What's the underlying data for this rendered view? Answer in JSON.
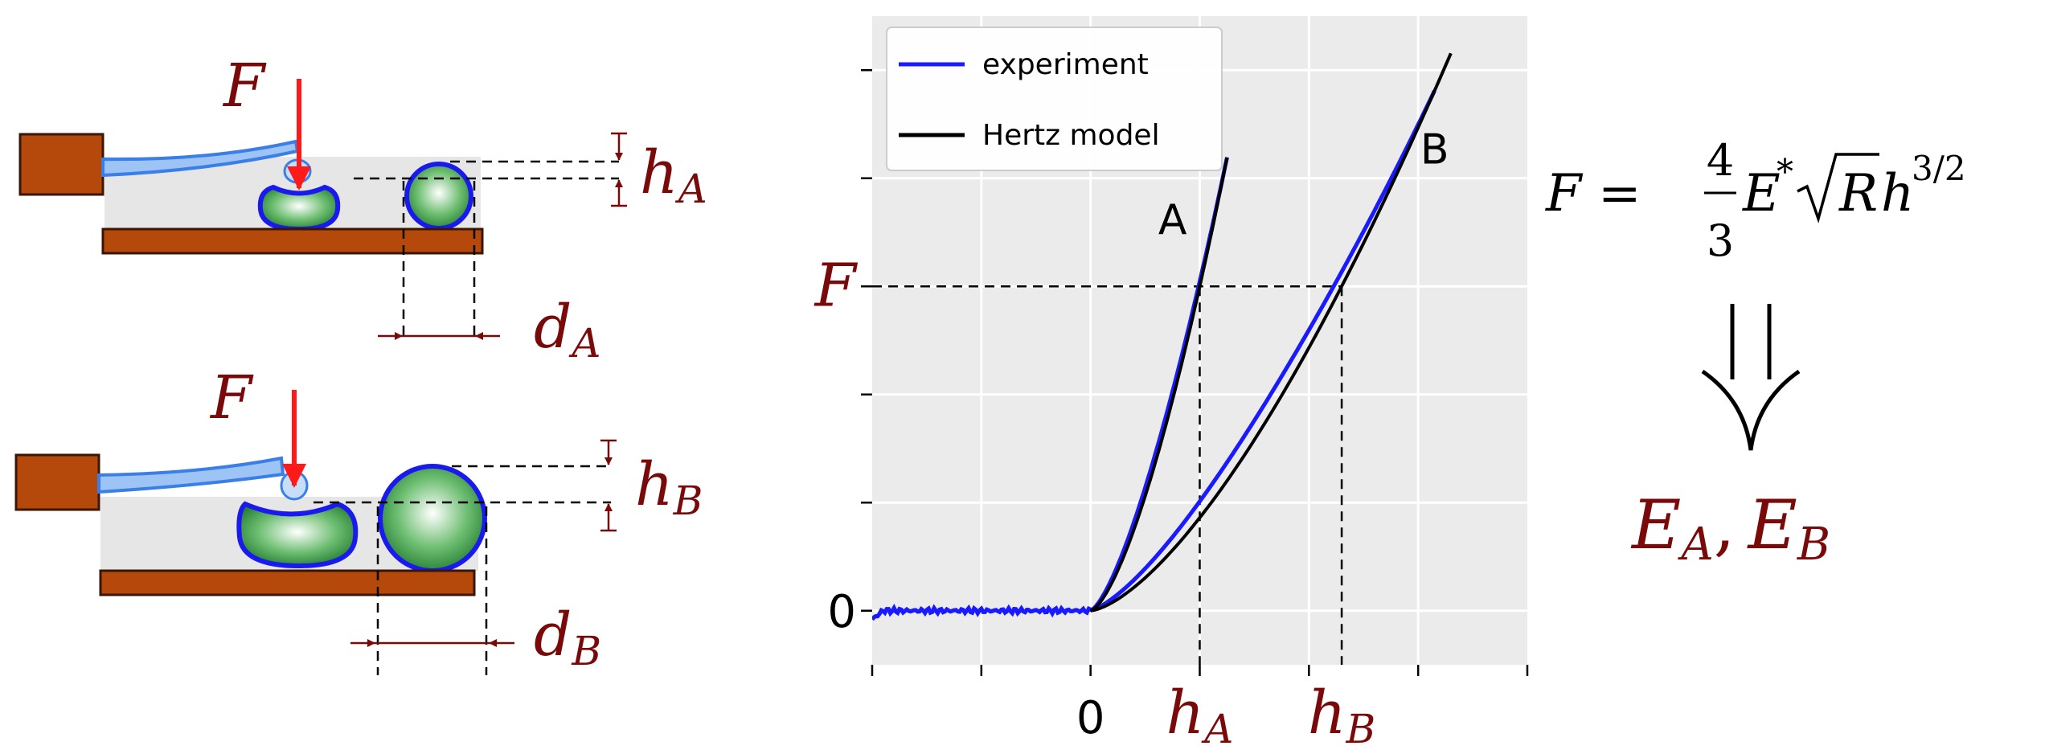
{
  "colors": {
    "force_arrow": "#ff1a1a",
    "label_dark_red": "#7a0a0a",
    "block_brown": "#b5490b",
    "cantilever_blue": "#3a7ee8",
    "cell_green": "#2e8b3c",
    "cell_outline": "#1a1aee",
    "experiment_line": "#1a1aff",
    "hertz_line": "#000000",
    "plot_bg": "#ebebeb",
    "grid": "#ffffff"
  },
  "top_panel": {
    "force_symbol": "F",
    "height_symbol": "h",
    "height_sub": "A",
    "width_symbol": "d",
    "width_sub": "A"
  },
  "bottom_panel": {
    "force_symbol": "F",
    "height_symbol": "h",
    "height_sub": "B",
    "width_symbol": "d",
    "width_sub": "B"
  },
  "chart_data": {
    "type": "line",
    "title": "",
    "xlabel": "",
    "ylabel": "",
    "xlim": [
      -2,
      4
    ],
    "ylim": [
      -0.5,
      5.5
    ],
    "grid": true,
    "legend_position": "top-left",
    "x_ticks": [
      {
        "value": 0,
        "label": "0",
        "math": false
      },
      {
        "value": 1,
        "label": "h",
        "sub": "A",
        "math": true
      },
      {
        "value": 2.3,
        "label": "h",
        "sub": "B",
        "math": true
      }
    ],
    "y_ticks": [
      {
        "value": 0,
        "label": "0",
        "math": false
      },
      {
        "value": 3,
        "label": "F",
        "math": true
      }
    ],
    "series": [
      {
        "name": "experiment",
        "color": "#1a1aff",
        "kind": "experiment"
      },
      {
        "name": "Hertz model",
        "color": "#000000",
        "kind": "hertz"
      }
    ],
    "curve_labels": [
      "A",
      "B"
    ],
    "curves": {
      "A": {
        "h": [
          0,
          0.5,
          1.0,
          1.25
        ],
        "F": [
          0,
          1.06,
          3.0,
          4.14
        ]
      },
      "B": {
        "h": [
          0,
          1.0,
          2.3,
          3.3
        ],
        "F": [
          0,
          0.87,
          3.0,
          5.15
        ]
      }
    }
  },
  "equation": {
    "lhs": "F",
    "equals": "=",
    "frac_num": "4",
    "frac_den": "3",
    "E": "E",
    "star": "*",
    "R": "R",
    "h": "h",
    "exponent": "3/2"
  },
  "result": {
    "E1": "E",
    "sub1": "A",
    "comma": ",",
    "E2": "E",
    "sub2": "B"
  }
}
